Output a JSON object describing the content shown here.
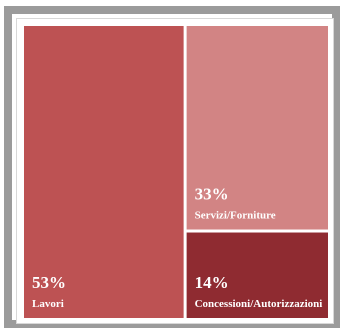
{
  "chart_data": {
    "type": "treemap",
    "categories": [
      "Lavori",
      "Servizi/Forniture",
      "Concessioni/Autorizzazioni"
    ],
    "values": [
      53,
      33,
      14
    ],
    "value_labels": [
      "53%",
      "33%",
      "14%"
    ],
    "colors": [
      "#bd5253",
      "#d28484",
      "#8f2b31"
    ],
    "label_color": "#ffffff",
    "title": "",
    "xlabel": "",
    "ylabel": "",
    "legend": "none",
    "grid": false
  }
}
